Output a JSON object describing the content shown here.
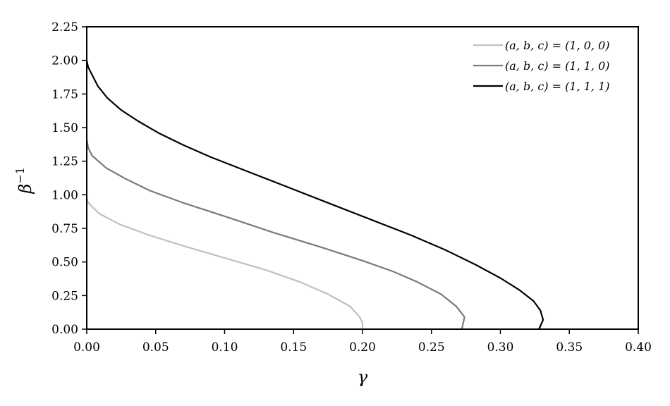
{
  "chart_data": {
    "type": "line",
    "xlabel": "γ",
    "ylabel": "β",
    "ylabel_sup": "−1",
    "xlim": [
      0.0,
      0.4
    ],
    "ylim": [
      0.0,
      2.25
    ],
    "xticks": [
      "0.00",
      "0.05",
      "0.10",
      "0.15",
      "0.20",
      "0.25",
      "0.30",
      "0.35",
      "0.40"
    ],
    "yticks": [
      "0.00",
      "0.25",
      "0.50",
      "0.75",
      "1.00",
      "1.25",
      "1.50",
      "1.75",
      "2.00",
      "2.25"
    ],
    "grid": false,
    "legend_position": "top-right",
    "series": [
      {
        "name": "(a, b, c) = (1, 0, 0)",
        "color": "#c0c0c0",
        "x": [
          0.0,
          0.0005,
          0.003,
          0.009,
          0.024,
          0.045,
          0.07,
          0.1,
          0.13,
          0.155,
          0.175,
          0.191,
          0.198,
          0.2,
          0.2
        ],
        "y": [
          0.98,
          0.95,
          0.92,
          0.86,
          0.78,
          0.7,
          0.62,
          0.53,
          0.44,
          0.35,
          0.26,
          0.17,
          0.09,
          0.045,
          0.0
        ]
      },
      {
        "name": "(a, b, c) = (1, 1, 0)",
        "color": "#7a7a7a",
        "x": [
          0.0,
          0.001,
          0.004,
          0.014,
          0.028,
          0.046,
          0.07,
          0.1,
          0.135,
          0.17,
          0.2,
          0.222,
          0.24,
          0.257,
          0.268,
          0.274,
          0.272
        ],
        "y": [
          1.41,
          1.35,
          1.29,
          1.2,
          1.12,
          1.03,
          0.94,
          0.84,
          0.72,
          0.61,
          0.51,
          0.43,
          0.35,
          0.26,
          0.17,
          0.09,
          0.0
        ]
      },
      {
        "name": "(a, b, c) = (1, 1, 1)",
        "color": "#000000",
        "x": [
          0.0,
          0.001,
          0.004,
          0.008,
          0.015,
          0.025,
          0.037,
          0.052,
          0.07,
          0.09,
          0.115,
          0.145,
          0.175,
          0.205,
          0.235,
          0.26,
          0.282,
          0.3,
          0.314,
          0.324,
          0.329,
          0.331,
          0.328
        ],
        "y": [
          2.0,
          1.95,
          1.89,
          1.81,
          1.72,
          1.63,
          1.55,
          1.46,
          1.37,
          1.28,
          1.18,
          1.06,
          0.94,
          0.82,
          0.7,
          0.59,
          0.48,
          0.38,
          0.29,
          0.21,
          0.14,
          0.07,
          0.0
        ]
      }
    ]
  }
}
